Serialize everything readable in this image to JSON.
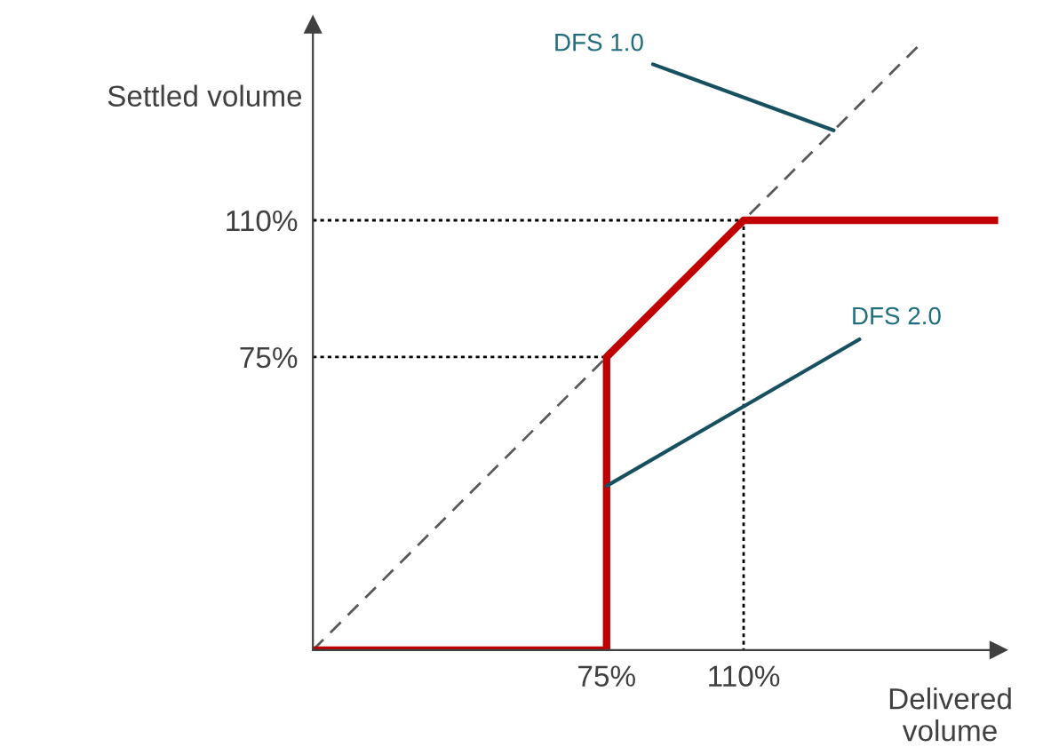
{
  "chart_data": {
    "type": "line",
    "xlabel": "Delivered\nvolume",
    "ylabel": "Settled volume",
    "xlim": [
      0,
      175
    ],
    "ylim": [
      0,
      160
    ],
    "xticks": [
      {
        "value": 75,
        "label": "75%"
      },
      {
        "value": 110,
        "label": "110%"
      }
    ],
    "yticks": [
      {
        "value": 75,
        "label": "75%"
      },
      {
        "value": 110,
        "label": "110%"
      }
    ],
    "grid": false,
    "legend": false,
    "marker": "none",
    "series": [
      {
        "color": "#000000",
        "line_style": "dotted",
        "x": [
          0,
          75,
          75
        ],
        "values": [
          75,
          75,
          0
        ]
      },
      {
        "color": "#000000",
        "line_style": "dotted",
        "x": [
          0,
          110,
          110
        ],
        "values": [
          110,
          110,
          0
        ]
      },
      {
        "color": "#595959",
        "line_style": "dashed",
        "x": [
          0,
          155
        ],
        "values": [
          0,
          155
        ]
      },
      {
        "color": "#c00000",
        "line_style": "solid",
        "x": [
          0,
          75,
          75,
          110,
          175
        ],
        "values": [
          0,
          0,
          75,
          110,
          110
        ]
      }
    ],
    "annotations": [
      {
        "text": "DFS 1.0",
        "x": 133,
        "y": 133
      },
      {
        "text": "DFS 2.0",
        "x": 75,
        "y": 42
      }
    ]
  }
}
